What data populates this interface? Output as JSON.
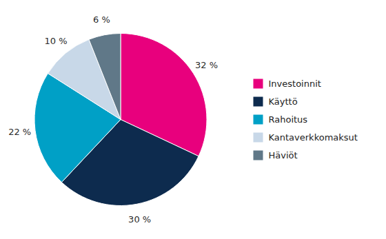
{
  "chart_data": {
    "type": "pie",
    "categories": [
      "Investoinnit",
      "Käyttö",
      "Rahoitus",
      "Kantaverkkomaksut",
      "Häviöt"
    ],
    "values": [
      32,
      30,
      22,
      10,
      6
    ],
    "value_labels": [
      "32 %",
      "30 %",
      "22 %",
      "10 %",
      "6 %"
    ],
    "colors": [
      "#E8007D",
      "#0D2B4E",
      "#00A0C6",
      "#C8D8E8",
      "#607888"
    ],
    "data_labels": true,
    "legend": "right"
  }
}
